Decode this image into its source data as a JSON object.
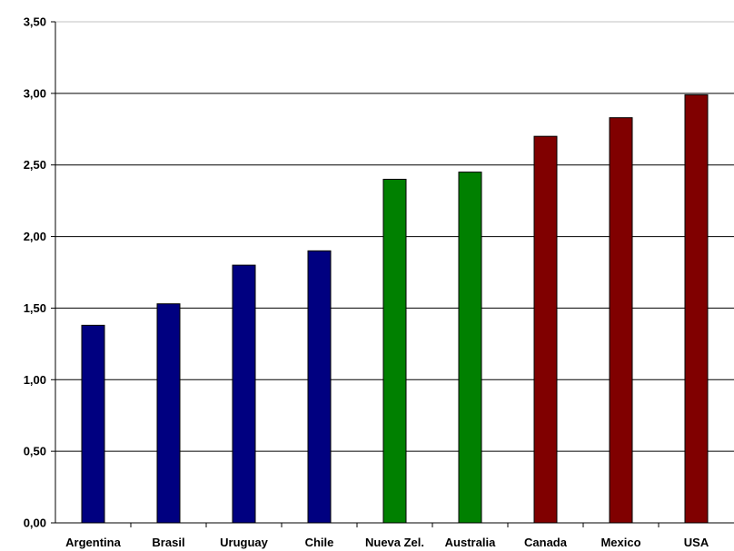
{
  "chart_data": {
    "type": "bar",
    "title": "",
    "xlabel": "",
    "ylabel": "",
    "ylim": [
      0,
      3.5
    ],
    "yticks": [
      "0,00",
      "0,50",
      "1,00",
      "1,50",
      "2,00",
      "2,50",
      "3,00",
      "3,50"
    ],
    "grid": true,
    "legend": "none",
    "categories": [
      "Argentina",
      "Brasil",
      "Uruguay",
      "Chile",
      "Nueva Zel.",
      "Australia",
      "Canada",
      "Mexico",
      "USA"
    ],
    "values": [
      1.38,
      1.53,
      1.8,
      1.9,
      2.4,
      2.45,
      2.7,
      2.83,
      2.99
    ],
    "bar_colors": [
      "#000080",
      "#000080",
      "#000080",
      "#000080",
      "#008000",
      "#008000",
      "#800000",
      "#800000",
      "#800000"
    ]
  }
}
